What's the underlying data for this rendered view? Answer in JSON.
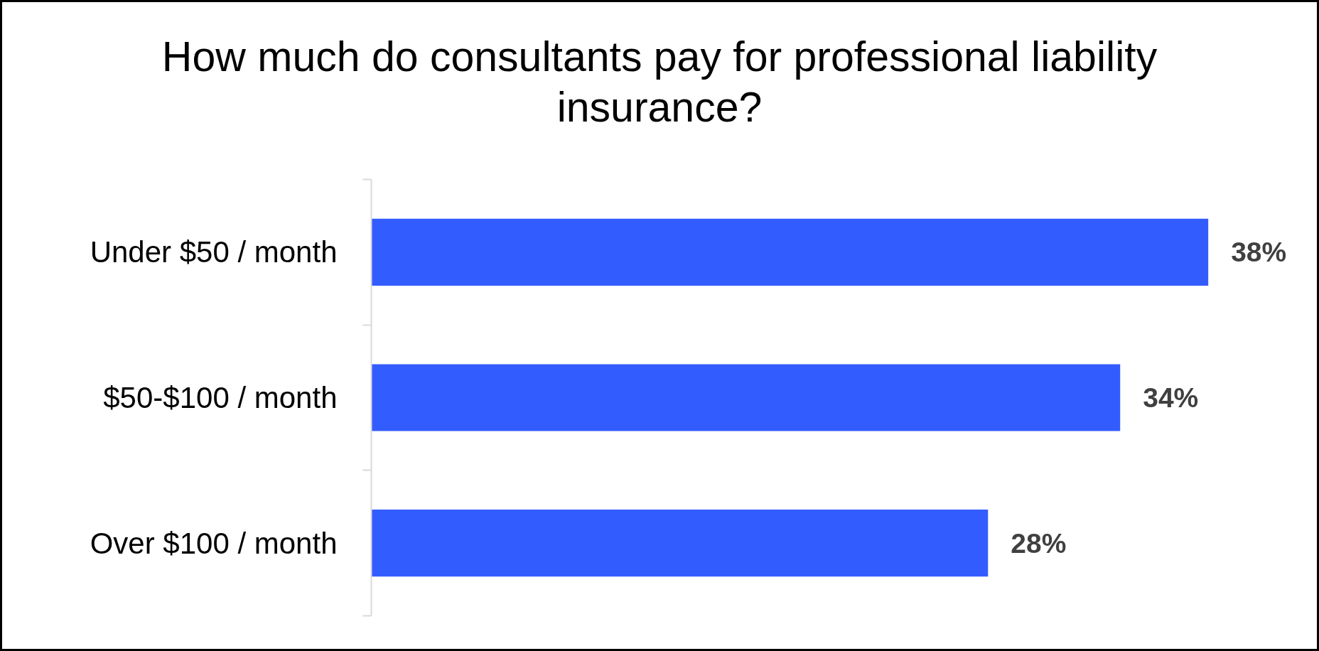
{
  "chart_data": {
    "type": "bar",
    "orientation": "horizontal",
    "title": "How much do consultants pay for professional liability insurance?",
    "categories": [
      "Under $50 / month",
      "$50-$100 / month",
      "Over $100 / month"
    ],
    "values": [
      38,
      34,
      28
    ],
    "color": "#335cff",
    "value_labels": [
      "38%",
      "34%",
      "28%"
    ],
    "tick_labels": "y"
  }
}
